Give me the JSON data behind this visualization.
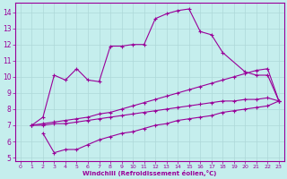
{
  "xlabel": "Windchill (Refroidissement éolien,°C)",
  "xlim": [
    -0.5,
    23.5
  ],
  "ylim": [
    4.8,
    14.6
  ],
  "xticks": [
    0,
    1,
    2,
    3,
    4,
    5,
    6,
    7,
    8,
    9,
    10,
    11,
    12,
    13,
    14,
    15,
    16,
    17,
    18,
    19,
    20,
    21,
    22,
    23
  ],
  "yticks": [
    5,
    6,
    7,
    8,
    9,
    10,
    11,
    12,
    13,
    14
  ],
  "bg_color": "#c5eeed",
  "grid_color": "#aed8d8",
  "line_color": "#990099",
  "curve1_x": [
    1,
    2,
    3,
    4,
    5,
    6,
    7,
    8,
    9,
    10,
    11,
    12,
    13,
    14,
    15,
    16,
    17,
    18,
    20,
    21,
    22,
    23
  ],
  "curve1_y": [
    7.0,
    7.5,
    10.1,
    9.8,
    10.5,
    9.8,
    9.7,
    11.9,
    11.9,
    12.0,
    12.0,
    13.6,
    13.9,
    14.1,
    14.2,
    12.8,
    12.6,
    11.5,
    10.3,
    10.1,
    10.1,
    8.5
  ],
  "curve2_x": [
    1,
    2,
    3,
    4,
    5,
    6,
    7,
    8,
    9,
    10,
    11,
    12,
    13,
    14,
    15,
    16,
    17,
    18,
    19,
    20,
    21,
    22,
    23
  ],
  "curve2_y": [
    7.0,
    7.1,
    7.2,
    7.3,
    7.4,
    7.5,
    7.7,
    7.8,
    8.0,
    8.2,
    8.4,
    8.6,
    8.8,
    9.0,
    9.2,
    9.4,
    9.6,
    9.8,
    10.0,
    10.2,
    10.4,
    10.5,
    8.5
  ],
  "curve3_x": [
    1,
    2,
    3,
    4,
    5,
    6,
    7,
    8,
    9,
    10,
    11,
    12,
    13,
    14,
    15,
    16,
    17,
    18,
    19,
    20,
    21,
    22,
    23
  ],
  "curve3_y": [
    7.0,
    7.0,
    7.1,
    7.1,
    7.2,
    7.3,
    7.4,
    7.5,
    7.6,
    7.7,
    7.8,
    7.9,
    8.0,
    8.1,
    8.2,
    8.3,
    8.4,
    8.5,
    8.5,
    8.6,
    8.6,
    8.7,
    8.5
  ],
  "curve4_x": [
    2,
    3,
    4,
    5,
    6,
    7,
    8,
    9,
    10,
    11,
    12,
    13,
    14,
    15,
    16,
    17,
    18,
    19,
    20,
    21,
    22,
    23
  ],
  "curve4_y": [
    6.5,
    5.3,
    5.5,
    5.5,
    5.8,
    6.1,
    6.3,
    6.5,
    6.6,
    6.8,
    7.0,
    7.1,
    7.3,
    7.4,
    7.5,
    7.6,
    7.8,
    7.9,
    8.0,
    8.1,
    8.2,
    8.5
  ]
}
